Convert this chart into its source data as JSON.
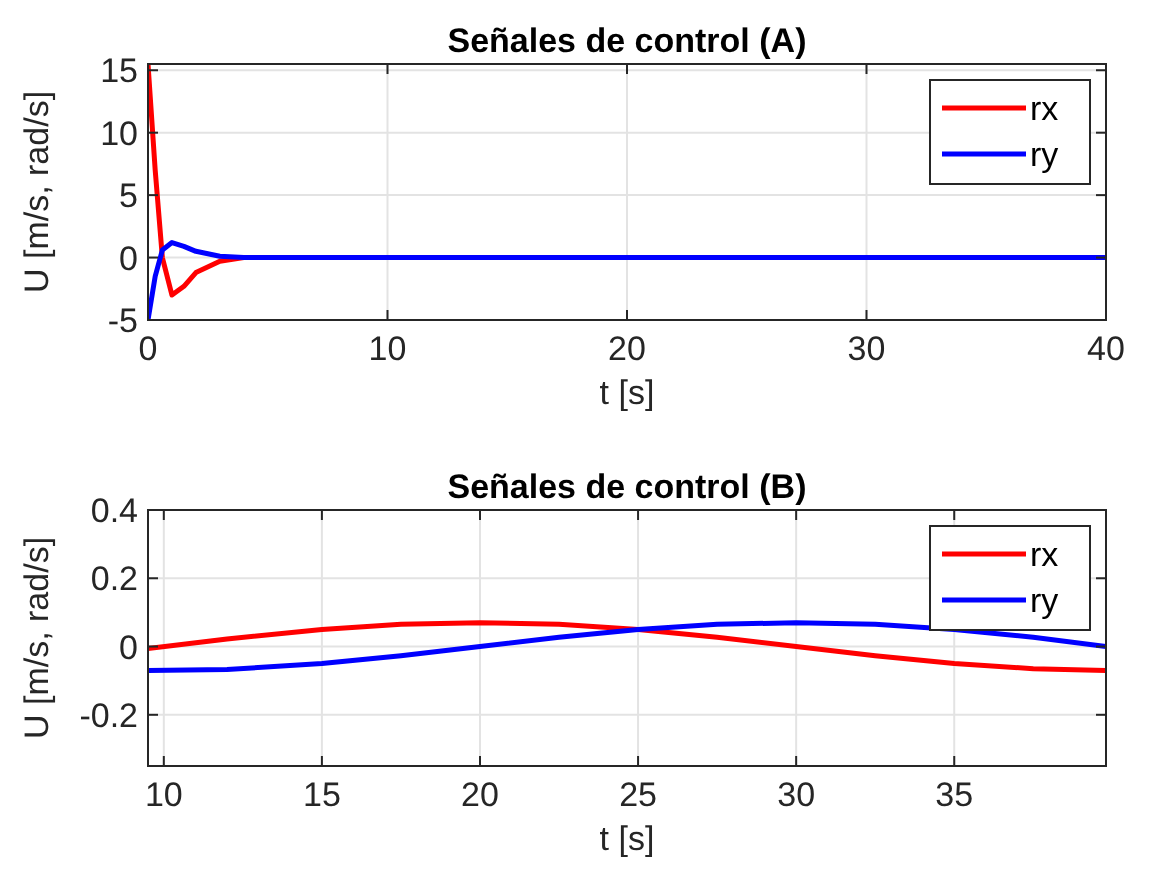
{
  "chart_data": [
    {
      "type": "line",
      "title": "Señales de control (A)",
      "xlabel": "t [s]",
      "ylabel": "U [m/s, rad/s]",
      "xlim": [
        0,
        40
      ],
      "ylim": [
        -5,
        15.5
      ],
      "xticks": [
        0,
        10,
        20,
        30,
        40
      ],
      "yticks": [
        -5,
        0,
        5,
        10,
        15
      ],
      "grid": true,
      "legend": "top right",
      "line_style": "solid",
      "series": [
        {
          "name": "rx",
          "color": "#ff0000",
          "x": [
            0,
            0.3,
            0.6,
            1,
            1.5,
            2,
            3,
            4,
            10
          ],
          "values": [
            15.5,
            7,
            0,
            -3,
            -2.3,
            -1.2,
            -0.3,
            0,
            0
          ]
        },
        {
          "name": "ry",
          "color": "#0000ff",
          "x": [
            0,
            0.3,
            0.6,
            1,
            1.5,
            2,
            3,
            4,
            10,
            20,
            30,
            40
          ],
          "values": [
            -5,
            -1.5,
            0.6,
            1.2,
            0.9,
            0.5,
            0.1,
            0,
            0,
            0,
            0,
            0
          ]
        }
      ]
    },
    {
      "type": "line",
      "title": "Señales de control (B)",
      "xlabel": "t [s]",
      "ylabel": "U [m/s, rad/s]",
      "xlim": [
        9.5,
        39.8
      ],
      "ylim": [
        -0.35,
        0.4
      ],
      "xticks": [
        10,
        15,
        20,
        25,
        30,
        35
      ],
      "yticks": [
        -0.2,
        0,
        0.2,
        0.4
      ],
      "grid": true,
      "legend": "top right",
      "line_style": "solid",
      "series": [
        {
          "name": "rx",
          "color": "#ff0000",
          "x": [
            9.5,
            12,
            15,
            17.5,
            20,
            22.5,
            25,
            27.5,
            30,
            32.5,
            35,
            37.5,
            39.8
          ],
          "values": [
            -0.006,
            0.022,
            0.05,
            0.065,
            0.07,
            0.065,
            0.05,
            0.027,
            0,
            -0.027,
            -0.05,
            -0.065,
            -0.07
          ]
        },
        {
          "name": "ry",
          "color": "#0000ff",
          "x": [
            9.5,
            12,
            15,
            17.5,
            20,
            22.5,
            25,
            27.5,
            30,
            32.5,
            35,
            37.5,
            39.8
          ],
          "values": [
            -0.07,
            -0.067,
            -0.05,
            -0.027,
            0,
            0.027,
            0.05,
            0.065,
            0.07,
            0.065,
            0.05,
            0.027,
            0
          ]
        }
      ]
    }
  ]
}
